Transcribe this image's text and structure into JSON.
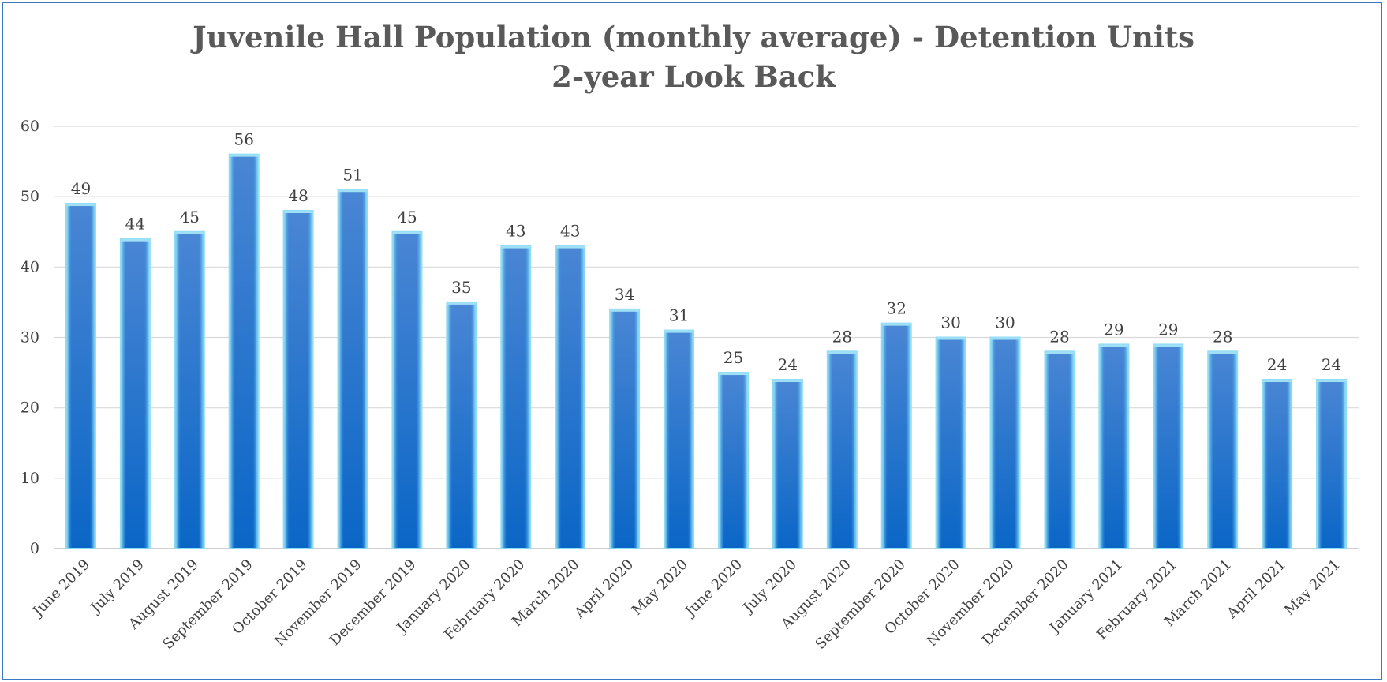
{
  "chart_data": {
    "type": "bar",
    "title": "Juvenile Hall Population (monthly average) - Detention Units",
    "subtitle": "2-year Look Back",
    "xlabel": "",
    "ylabel": "",
    "ylim": [
      0,
      60
    ],
    "yticks": [
      0,
      10,
      20,
      30,
      40,
      50,
      60
    ],
    "grid": true,
    "legend": "none",
    "bar_color_top": "#4a86d4",
    "bar_color_bottom": "#0a66c6",
    "bar_edge_color": "#8fdcf5",
    "categories": [
      "June 2019",
      "July 2019",
      "August 2019",
      "September 2019",
      "October 2019",
      "November 2019",
      "December 2019",
      "January 2020",
      "February 2020",
      "March 2020",
      "April 2020",
      "May 2020",
      "June 2020",
      "July 2020",
      "August 2020",
      "September 2020",
      "October 2020",
      "November 2020",
      "December 2020",
      "January 2021",
      "February 2021",
      "March 2021",
      "April 2021",
      "May 2021"
    ],
    "values": [
      49,
      44,
      45,
      56,
      48,
      51,
      45,
      35,
      43,
      43,
      34,
      31,
      25,
      24,
      28,
      32,
      30,
      30,
      28,
      29,
      29,
      28,
      24,
      24
    ],
    "data_labels": [
      "49",
      "44",
      "45",
      "56",
      "48",
      "51",
      "45",
      "35",
      "43",
      "43",
      "34",
      "31",
      "25",
      "24",
      "28",
      "32",
      "30",
      "30",
      "28",
      "29",
      "29",
      "28",
      "24",
      "24"
    ]
  }
}
